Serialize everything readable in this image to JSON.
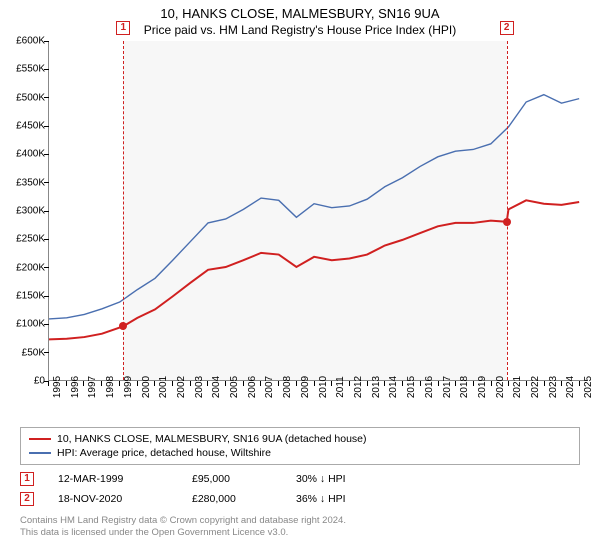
{
  "title": "10, HANKS CLOSE, MALMESBURY, SN16 9UA",
  "subtitle": "Price paid vs. HM Land Registry's House Price Index (HPI)",
  "chart": {
    "type": "line",
    "x_years": [
      1995,
      1996,
      1997,
      1998,
      1999,
      2000,
      2001,
      2002,
      2003,
      2004,
      2005,
      2006,
      2007,
      2008,
      2009,
      2010,
      2011,
      2012,
      2013,
      2014,
      2015,
      2016,
      2017,
      2018,
      2019,
      2020,
      2021,
      2022,
      2023,
      2024,
      2025
    ],
    "x_min": 1995,
    "x_max": 2025.5,
    "y_min": 0,
    "y_max": 600000,
    "y_tick_step": 50000,
    "y_tick_labels": [
      "£0",
      "£50K",
      "£100K",
      "£150K",
      "£200K",
      "£250K",
      "£300K",
      "£350K",
      "£400K",
      "£450K",
      "£500K",
      "£550K",
      "£600K"
    ],
    "shaded": {
      "x_from": 1999.2,
      "x_to": 2020.9,
      "color": "rgba(200,200,200,0.15)"
    },
    "vlines": [
      {
        "x": 1999.2,
        "color": "#d02020",
        "label": "1"
      },
      {
        "x": 2020.9,
        "color": "#d02020",
        "label": "2"
      }
    ],
    "series": [
      {
        "name": "price_paid",
        "label": "10, HANKS CLOSE, MALMESBURY, SN16 9UA (detached house)",
        "color": "#d02020",
        "width": 2,
        "points": [
          [
            1995,
            72000
          ],
          [
            1996,
            73000
          ],
          [
            1997,
            76000
          ],
          [
            1998,
            82000
          ],
          [
            1999.2,
            95000
          ],
          [
            2000,
            110000
          ],
          [
            2001,
            125000
          ],
          [
            2002,
            148000
          ],
          [
            2003,
            172000
          ],
          [
            2004,
            195000
          ],
          [
            2005,
            200000
          ],
          [
            2006,
            212000
          ],
          [
            2007,
            225000
          ],
          [
            2008,
            222000
          ],
          [
            2009,
            200000
          ],
          [
            2010,
            218000
          ],
          [
            2011,
            212000
          ],
          [
            2012,
            215000
          ],
          [
            2013,
            222000
          ],
          [
            2014,
            238000
          ],
          [
            2015,
            248000
          ],
          [
            2016,
            260000
          ],
          [
            2017,
            272000
          ],
          [
            2018,
            278000
          ],
          [
            2019,
            278000
          ],
          [
            2020,
            282000
          ],
          [
            2020.9,
            280000
          ],
          [
            2021,
            302000
          ],
          [
            2022,
            318000
          ],
          [
            2023,
            312000
          ],
          [
            2024,
            310000
          ],
          [
            2025,
            315000
          ]
        ],
        "markers": [
          {
            "x": 1999.2,
            "y": 95000
          },
          {
            "x": 2020.9,
            "y": 280000
          }
        ]
      },
      {
        "name": "hpi",
        "label": "HPI: Average price, detached house, Wiltshire",
        "color": "#4a6fb0",
        "width": 1.4,
        "points": [
          [
            1995,
            108000
          ],
          [
            1996,
            110000
          ],
          [
            1997,
            116000
          ],
          [
            1998,
            126000
          ],
          [
            1999,
            138000
          ],
          [
            2000,
            160000
          ],
          [
            2001,
            180000
          ],
          [
            2002,
            212000
          ],
          [
            2003,
            245000
          ],
          [
            2004,
            278000
          ],
          [
            2005,
            285000
          ],
          [
            2006,
            302000
          ],
          [
            2007,
            322000
          ],
          [
            2008,
            318000
          ],
          [
            2009,
            288000
          ],
          [
            2010,
            312000
          ],
          [
            2011,
            305000
          ],
          [
            2012,
            308000
          ],
          [
            2013,
            320000
          ],
          [
            2014,
            342000
          ],
          [
            2015,
            358000
          ],
          [
            2016,
            378000
          ],
          [
            2017,
            395000
          ],
          [
            2018,
            405000
          ],
          [
            2019,
            408000
          ],
          [
            2020,
            418000
          ],
          [
            2021,
            448000
          ],
          [
            2022,
            492000
          ],
          [
            2023,
            505000
          ],
          [
            2024,
            490000
          ],
          [
            2025,
            498000
          ]
        ]
      }
    ]
  },
  "legend": [
    {
      "color": "#d02020",
      "text": "10, HANKS CLOSE, MALMESBURY, SN16 9UA (detached house)"
    },
    {
      "color": "#4a6fb0",
      "text": "HPI: Average price, detached house, Wiltshire"
    }
  ],
  "sales": [
    {
      "marker": "1",
      "date": "12-MAR-1999",
      "price": "£95,000",
      "delta": "30% ↓ HPI"
    },
    {
      "marker": "2",
      "date": "18-NOV-2020",
      "price": "£280,000",
      "delta": "36% ↓ HPI"
    }
  ],
  "attribution_line1": "Contains HM Land Registry data © Crown copyright and database right 2024.",
  "attribution_line2": "This data is licensed under the Open Government Licence v3.0."
}
